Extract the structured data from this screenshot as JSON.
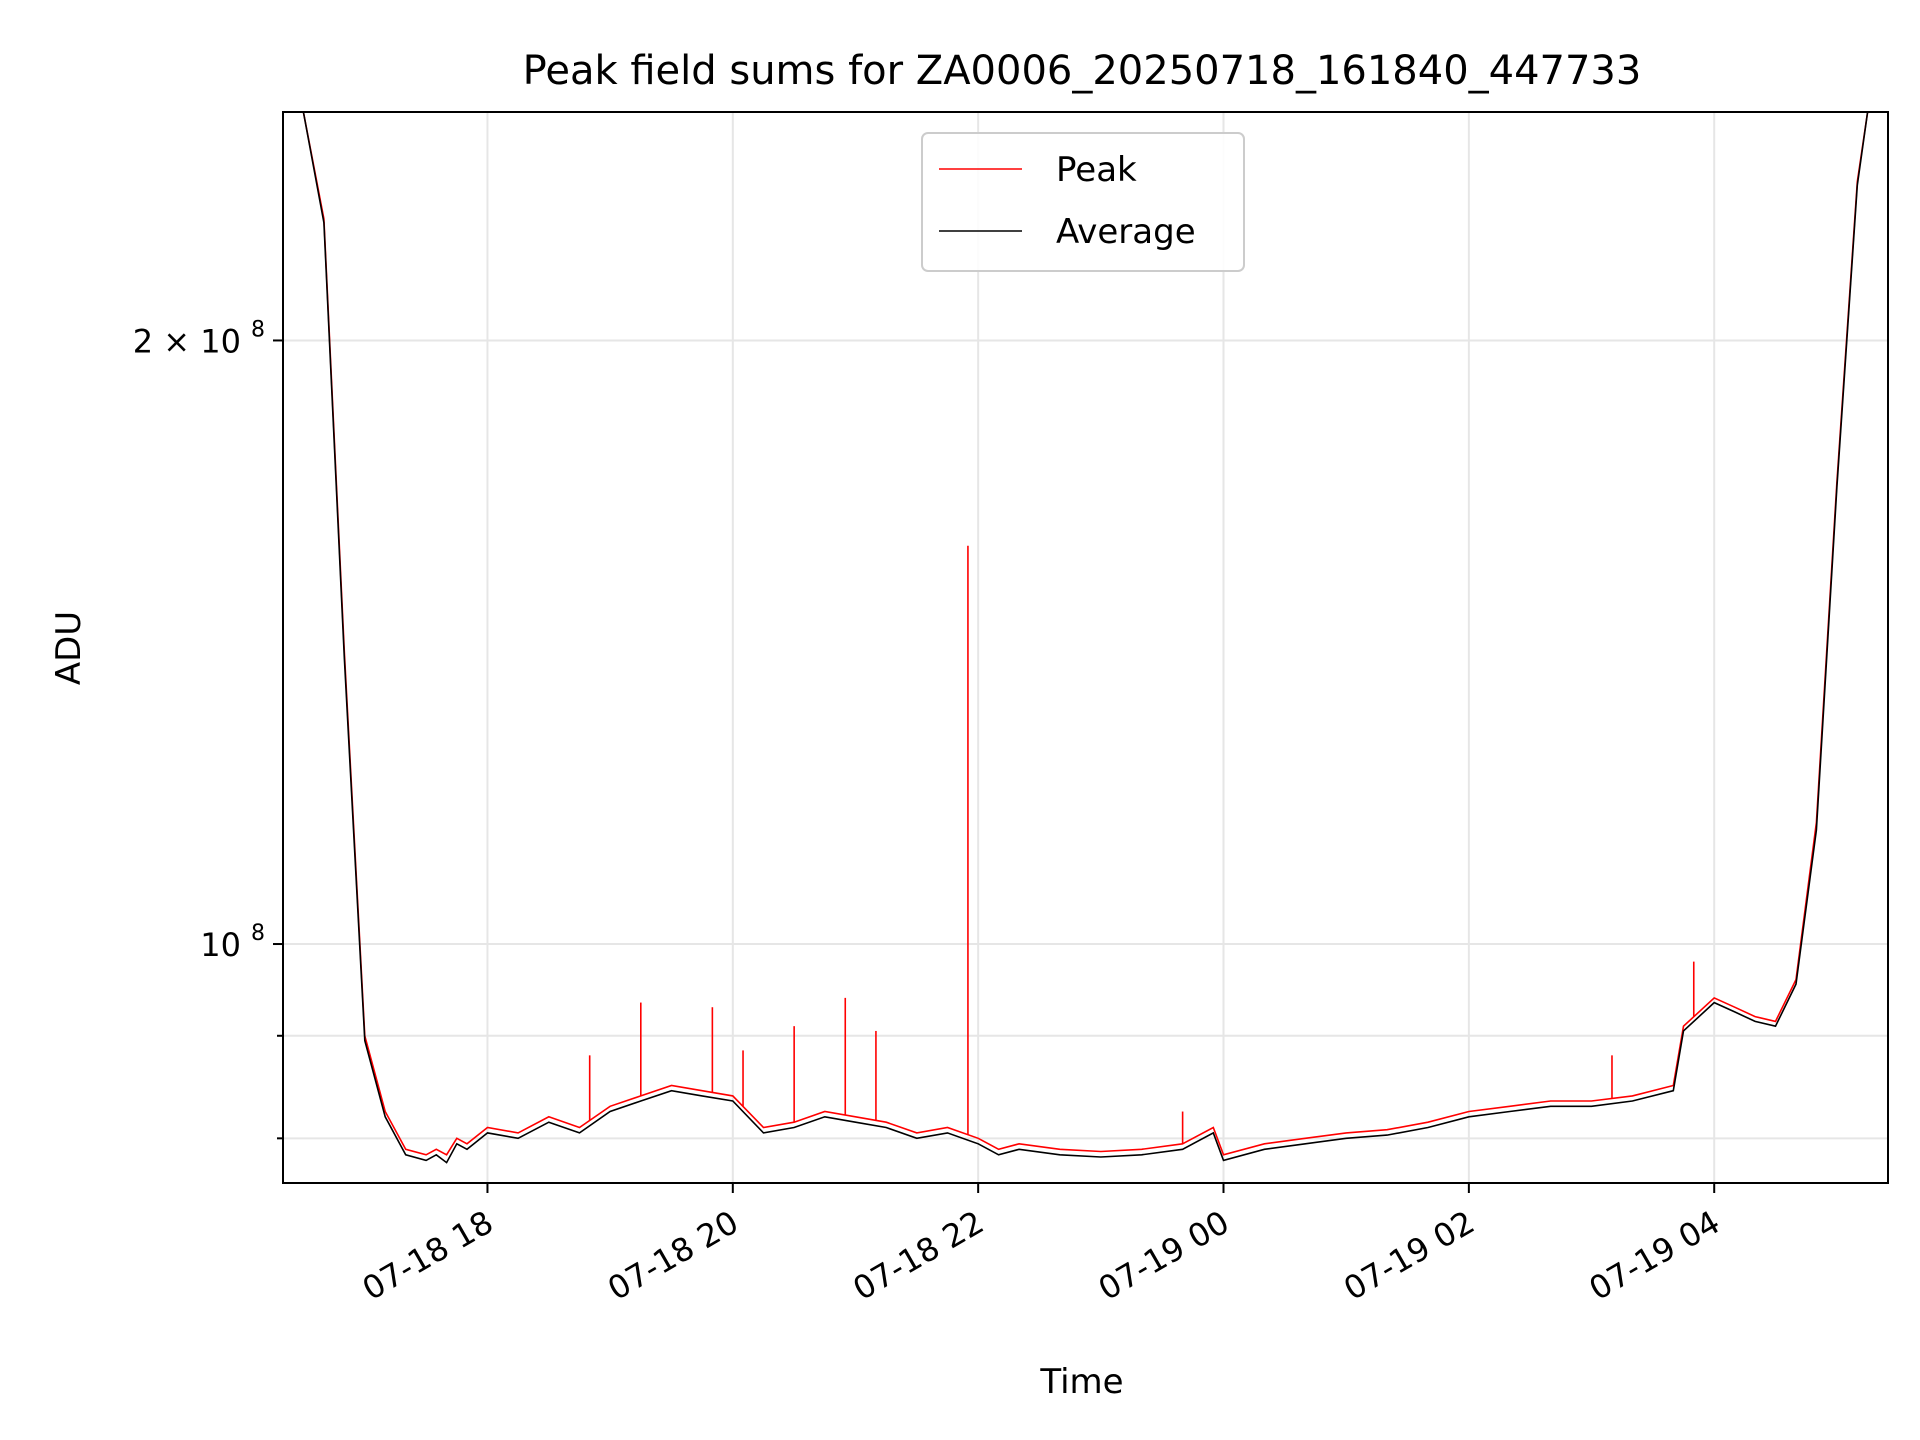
{
  "chart_data": {
    "type": "line",
    "title": "Peak field sums for ZA0006_20250718_161840_447733",
    "xlabel": "Time",
    "ylabel": "ADU",
    "yscale": "log",
    "grid": true,
    "legend_placement": "upper-center",
    "x_unit": "time (MM-DD HH)",
    "xlim": [
      "07-18 16:20",
      "07-19 05:25"
    ],
    "ylim": [
      76000000,
      260000000
    ],
    "x_ticks": [
      {
        "t": "07-18 18:00",
        "label": "07-18 18"
      },
      {
        "t": "07-18 20:00",
        "label": "07-18 20"
      },
      {
        "t": "07-18 22:00",
        "label": "07-18 22"
      },
      {
        "t": "07-19 00:00",
        "label": "07-19 00"
      },
      {
        "t": "07-19 02:00",
        "label": "07-19 02"
      },
      {
        "t": "07-19 04:00",
        "label": "07-19 04"
      }
    ],
    "y_ticks": [
      {
        "v": 200000000,
        "base": "2 × 10",
        "exp": "8"
      },
      {
        "v": 100000000,
        "base": "10",
        "exp": "8"
      }
    ],
    "y_minor_ticks": [
      90000000,
      80000000
    ],
    "series": [
      {
        "name": "Peak",
        "color": "#ff0000",
        "x": [
          "07-18 16:30",
          "07-18 16:40",
          "07-18 16:50",
          "07-18 17:00",
          "07-18 17:10",
          "07-18 17:20",
          "07-18 17:30",
          "07-18 17:35",
          "07-18 17:40",
          "07-18 17:45",
          "07-18 17:50",
          "07-18 18:00",
          "07-18 18:15",
          "07-18 18:30",
          "07-18 18:45",
          "07-18 19:00",
          "07-18 19:15",
          "07-18 19:30",
          "07-18 19:45",
          "07-18 20:00",
          "07-18 20:15",
          "07-18 20:30",
          "07-18 20:45",
          "07-18 21:00",
          "07-18 21:15",
          "07-18 21:30",
          "07-18 21:45",
          "07-18 22:00",
          "07-18 22:10",
          "07-18 22:20",
          "07-18 22:40",
          "07-18 23:00",
          "07-18 23:20",
          "07-18 23:40",
          "07-18 23:55",
          "07-19 00:00",
          "07-19 00:20",
          "07-19 00:40",
          "07-19 01:00",
          "07-19 01:20",
          "07-19 01:40",
          "07-19 02:00",
          "07-19 02:20",
          "07-19 02:40",
          "07-19 03:00",
          "07-19 03:20",
          "07-19 03:40",
          "07-19 03:45",
          "07-19 04:00",
          "07-19 04:10",
          "07-19 04:20",
          "07-19 04:30",
          "07-19 04:40",
          "07-19 04:50",
          "07-19 05:00",
          "07-19 05:10",
          "07-19 05:15"
        ],
        "y": [
          260000000,
          230000000,
          140000000,
          90000000,
          82500000,
          79000000,
          78500000,
          79000000,
          78500000,
          80000000,
          79500000,
          81000000,
          80500000,
          82000000,
          81000000,
          83000000,
          84000000,
          85000000,
          84500000,
          84000000,
          81000000,
          81500000,
          82500000,
          82000000,
          81500000,
          80500000,
          81000000,
          80000000,
          79000000,
          79500000,
          79000000,
          78800000,
          79000000,
          79500000,
          81000000,
          78500000,
          79500000,
          80000000,
          80500000,
          80800000,
          81500000,
          82500000,
          83000000,
          83500000,
          83500000,
          84000000,
          85000000,
          91000000,
          94000000,
          93000000,
          92000000,
          91500000,
          96000000,
          115000000,
          170000000,
          240000000,
          260000000
        ],
        "spikes": [
          {
            "x": "07-18 21:55",
            "y": 158000000
          },
          {
            "x": "07-18 19:15",
            "y": 93500000
          },
          {
            "x": "07-18 19:50",
            "y": 93000000
          },
          {
            "x": "07-18 20:55",
            "y": 94000000
          },
          {
            "x": "07-18 20:30",
            "y": 91000000
          },
          {
            "x": "07-18 21:10",
            "y": 90500000
          },
          {
            "x": "07-18 18:50",
            "y": 88000000
          },
          {
            "x": "07-18 20:05",
            "y": 88500000
          },
          {
            "x": "07-18 23:40",
            "y": 82500000
          },
          {
            "x": "07-19 03:10",
            "y": 88000000
          },
          {
            "x": "07-19 03:50",
            "y": 98000000
          }
        ]
      },
      {
        "name": "Average",
        "color": "#000000",
        "x": [
          "07-18 16:30",
          "07-18 16:40",
          "07-18 16:50",
          "07-18 17:00",
          "07-18 17:10",
          "07-18 17:20",
          "07-18 17:30",
          "07-18 17:35",
          "07-18 17:40",
          "07-18 17:45",
          "07-18 17:50",
          "07-18 18:00",
          "07-18 18:15",
          "07-18 18:30",
          "07-18 18:45",
          "07-18 19:00",
          "07-18 19:15",
          "07-18 19:30",
          "07-18 19:45",
          "07-18 20:00",
          "07-18 20:15",
          "07-18 20:30",
          "07-18 20:45",
          "07-18 21:00",
          "07-18 21:15",
          "07-18 21:30",
          "07-18 21:45",
          "07-18 22:00",
          "07-18 22:10",
          "07-18 22:20",
          "07-18 22:40",
          "07-18 23:00",
          "07-18 23:20",
          "07-18 23:40",
          "07-18 23:55",
          "07-19 00:00",
          "07-19 00:20",
          "07-19 00:40",
          "07-19 01:00",
          "07-19 01:20",
          "07-19 01:40",
          "07-19 02:00",
          "07-19 02:20",
          "07-19 02:40",
          "07-19 03:00",
          "07-19 03:20",
          "07-19 03:40",
          "07-19 03:45",
          "07-19 04:00",
          "07-19 04:10",
          "07-19 04:20",
          "07-19 04:30",
          "07-19 04:40",
          "07-19 04:50",
          "07-19 05:00",
          "07-19 05:10",
          "07-19 05:15"
        ],
        "y": [
          260000000,
          229000000,
          139000000,
          89500000,
          82000000,
          78500000,
          78000000,
          78500000,
          77800000,
          79500000,
          79000000,
          80500000,
          80000000,
          81500000,
          80500000,
          82500000,
          83500000,
          84500000,
          84000000,
          83500000,
          80500000,
          81000000,
          82000000,
          81500000,
          81000000,
          80000000,
          80500000,
          79500000,
          78500000,
          79000000,
          78500000,
          78300000,
          78500000,
          79000000,
          80500000,
          78000000,
          79000000,
          79500000,
          80000000,
          80300000,
          81000000,
          82000000,
          82500000,
          83000000,
          83000000,
          83500000,
          84500000,
          90500000,
          93500000,
          92500000,
          91500000,
          91000000,
          95500000,
          114000000,
          169000000,
          239000000,
          260000000
        ]
      }
    ]
  }
}
